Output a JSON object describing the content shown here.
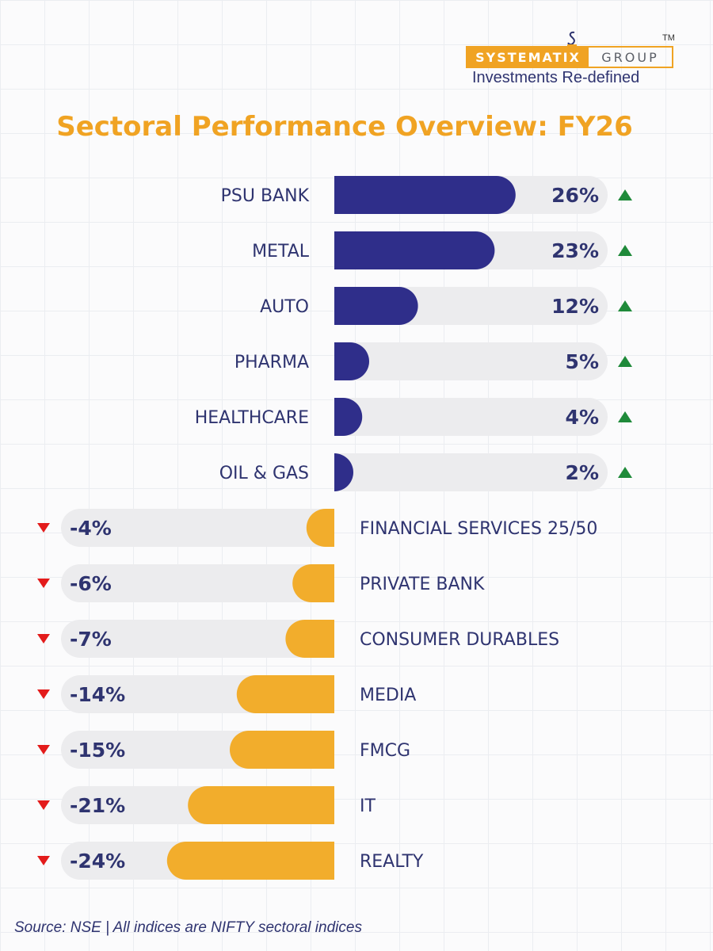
{
  "brand": {
    "name_left": "SYSTEMATIX",
    "name_right": "GROUP",
    "trademark": "TM",
    "tagline": "Investments Re-defined",
    "colors": {
      "accent": "#f0a323",
      "navy": "#2f3470"
    }
  },
  "chart_data": {
    "type": "bar",
    "orientation": "horizontal-diverging",
    "title": "Sectoral Performance Overview: FY26",
    "xlim": [
      -30,
      30
    ],
    "unit": "%",
    "categories": [
      "PSU BANK",
      "METAL",
      "AUTO",
      "PHARMA",
      "HEALTHCARE",
      "OIL & GAS",
      "FINANCIAL SERVICES 25/50",
      "PRIVATE BANK",
      "CONSUMER DURABLES",
      "MEDIA",
      "FMCG",
      "IT",
      "REALTY"
    ],
    "values": [
      26,
      23,
      12,
      5,
      4,
      2,
      -4,
      -6,
      -7,
      -14,
      -15,
      -21,
      -24
    ],
    "labels": [
      "26%",
      "23%",
      "12%",
      "5%",
      "4%",
      "2%",
      "-4%",
      "-6%",
      "-7%",
      "-14%",
      "-15%",
      "-21%",
      "-24%"
    ],
    "colors": {
      "positive": "#2f2e8a",
      "negative": "#f2ad2c",
      "track": "#ececee",
      "up_arrow": "#1f8a3a",
      "down_arrow": "#e31b1b",
      "text": "#2f3470"
    }
  },
  "footer": {
    "source": "Source: NSE | All indices are NIFTY sectoral indices"
  }
}
